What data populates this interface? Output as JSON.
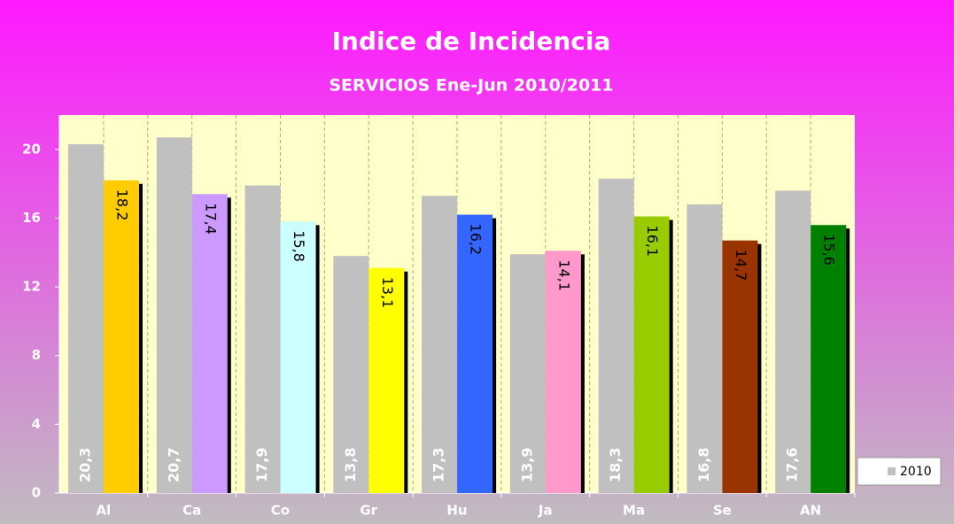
{
  "chart_data": {
    "type": "bar",
    "title": "Indice de Incidencia",
    "subtitle": "SERVICIOS Ene-Jun 2010/2011",
    "categories": [
      "Al",
      "Ca",
      "Co",
      "Gr",
      "Hu",
      "Ja",
      "Ma",
      "Se",
      "AN"
    ],
    "series": [
      {
        "name": "2010",
        "color": "#c0c0c0",
        "values": [
          20.3,
          20.7,
          17.9,
          13.8,
          17.3,
          13.9,
          18.3,
          16.8,
          17.6
        ],
        "value_labels": [
          "20,3",
          "20,7",
          "17,9",
          "13,8",
          "17,3",
          "13,9",
          "18,3",
          "16,8",
          "17,6"
        ]
      },
      {
        "colors": [
          "#ffcc00",
          "#cc99ff",
          "#ccffff",
          "#ffff00",
          "#3366ff",
          "#ff99cc",
          "#99cc00",
          "#993300",
          "#008000"
        ],
        "values": [
          18.2,
          17.4,
          15.8,
          13.1,
          16.2,
          14.1,
          16.1,
          14.7,
          15.6
        ],
        "value_labels": [
          "18,2",
          "17,4",
          "15,8",
          "13,1",
          "16,2",
          "14,1",
          "16,1",
          "14,7",
          "15,6"
        ]
      }
    ],
    "ylim": [
      0,
      22
    ],
    "yticks": [
      0,
      4,
      8,
      12,
      16,
      20
    ],
    "legend": "right"
  }
}
